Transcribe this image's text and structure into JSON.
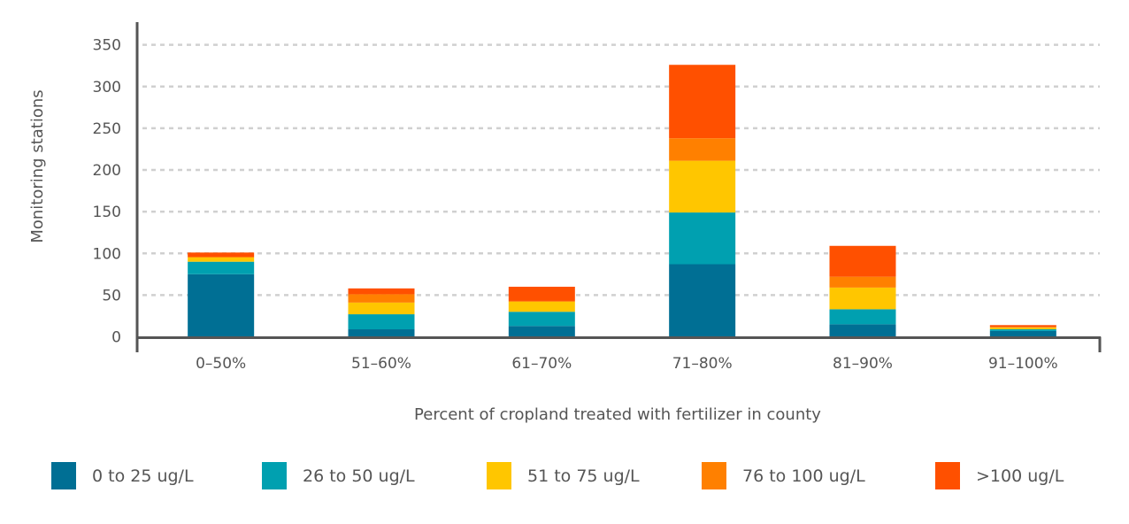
{
  "chart_data": {
    "type": "bar",
    "stacked": true,
    "xlabel": "Percent of cropland treated with fertilizer in county",
    "ylabel": "Monitoring stations",
    "ylim": [
      0,
      350
    ],
    "yticks": [
      0,
      50,
      100,
      150,
      200,
      250,
      300,
      350
    ],
    "grid": true,
    "legend_position": "bottom",
    "categories": [
      "0–50%",
      "51–60%",
      "61–70%",
      "71–80%",
      "81–90%",
      "91–100%"
    ],
    "series": [
      {
        "name": "0 to 25 ug/L",
        "color": "#006f94",
        "values": [
          75,
          9,
          13,
          87,
          15,
          7
        ]
      },
      {
        "name": "26 to 50 ug/L",
        "color": "#00a0b0",
        "values": [
          15,
          18,
          17,
          62,
          18,
          2
        ]
      },
      {
        "name": "51 to 75 ug/L",
        "color": "#ffc600",
        "values": [
          5,
          14,
          12,
          62,
          26,
          2
        ]
      },
      {
        "name": "76 to 100 ug/L",
        "color": "#ff8000",
        "values": [
          1,
          10,
          1,
          27,
          13,
          1
        ]
      },
      {
        "name": ">100 ug/L",
        "color": "#ff5000",
        "values": [
          5,
          7,
          17,
          88,
          37,
          2
        ]
      }
    ]
  }
}
